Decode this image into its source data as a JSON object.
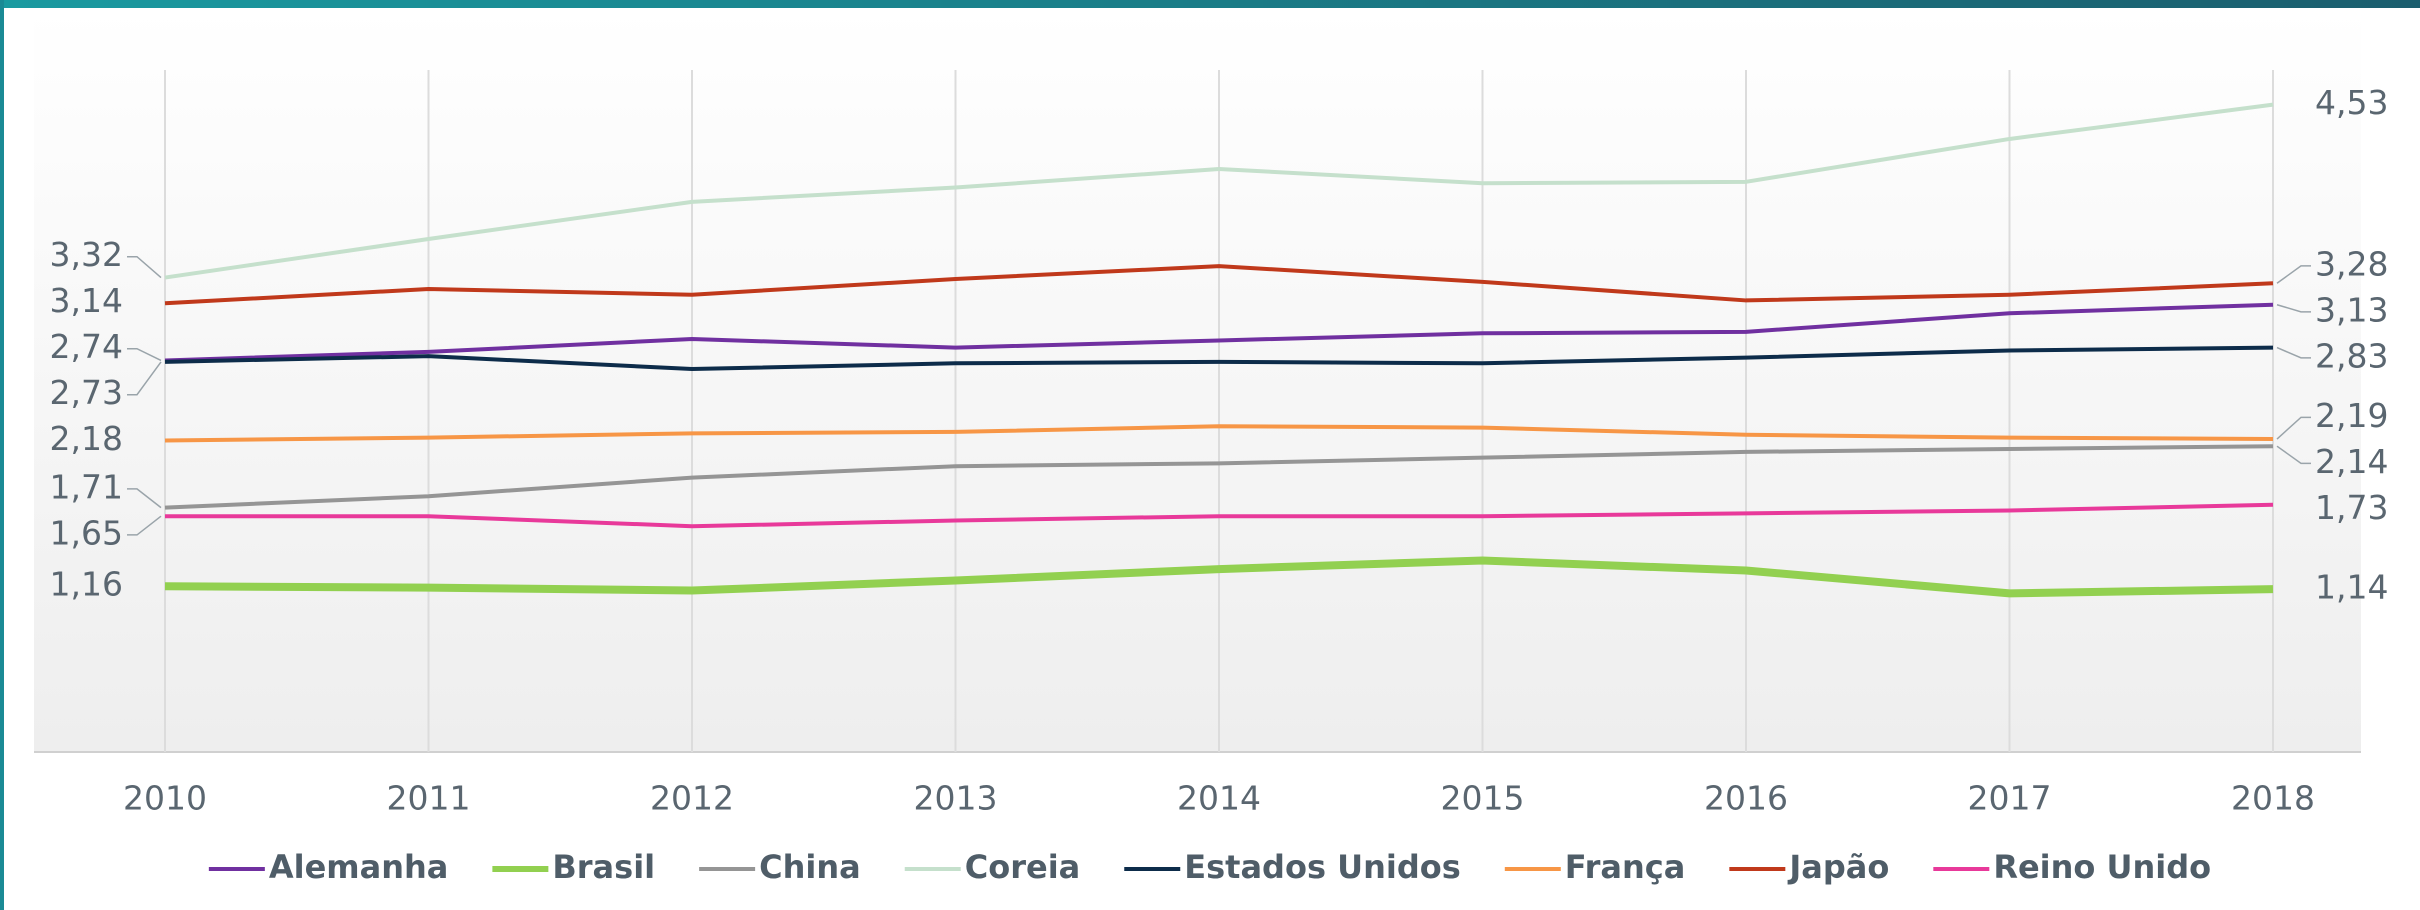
{
  "chart_data": {
    "type": "line",
    "categories": [
      "2010",
      "2011",
      "2012",
      "2013",
      "2014",
      "2015",
      "2016",
      "2017",
      "2018"
    ],
    "ylim": [
      0,
      5
    ],
    "grid": true,
    "series": [
      {
        "name": "Alemanha",
        "color": "#7030a0",
        "values": [
          2.74,
          2.8,
          2.89,
          2.83,
          2.88,
          2.93,
          2.94,
          3.07,
          3.13
        ],
        "value_labels": [
          "2,74",
          null,
          null,
          null,
          null,
          null,
          null,
          null,
          "3,13"
        ]
      },
      {
        "name": "Brasil",
        "color": "#92d050",
        "values": [
          1.16,
          1.15,
          1.13,
          1.2,
          1.28,
          1.34,
          1.27,
          1.11,
          1.14
        ],
        "value_labels": [
          "1,16",
          null,
          null,
          null,
          null,
          null,
          null,
          null,
          "1,14"
        ]
      },
      {
        "name": "China",
        "color": "#959595",
        "values": [
          1.71,
          1.79,
          1.92,
          2.0,
          2.02,
          2.06,
          2.1,
          2.12,
          2.14
        ],
        "value_labels": [
          "1,71",
          null,
          null,
          null,
          null,
          null,
          null,
          null,
          "2,14"
        ]
      },
      {
        "name": "Coreia",
        "color": "#c5e0cc",
        "values": [
          3.32,
          3.59,
          3.85,
          3.95,
          4.08,
          3.98,
          3.99,
          4.29,
          4.53
        ],
        "value_labels": [
          "3,32",
          null,
          null,
          null,
          null,
          null,
          null,
          null,
          "4,53"
        ]
      },
      {
        "name": "Estados Unidos",
        "color": "#0d2c4a",
        "values": [
          2.73,
          2.77,
          2.68,
          2.72,
          2.73,
          2.72,
          2.76,
          2.81,
          2.83
        ],
        "value_labels": [
          "2,73",
          null,
          null,
          null,
          null,
          null,
          null,
          null,
          "2,83"
        ]
      },
      {
        "name": "França",
        "color": "#f79646",
        "values": [
          2.18,
          2.2,
          2.23,
          2.24,
          2.28,
          2.27,
          2.22,
          2.2,
          2.19
        ],
        "value_labels": [
          "2,18",
          null,
          null,
          null,
          null,
          null,
          null,
          null,
          "2,19"
        ]
      },
      {
        "name": "Japão",
        "color": "#c0391b",
        "values": [
          3.14,
          3.24,
          3.2,
          3.31,
          3.4,
          3.29,
          3.16,
          3.2,
          3.28
        ],
        "value_labels": [
          "3,14",
          null,
          null,
          null,
          null,
          null,
          null,
          null,
          "3,28"
        ]
      },
      {
        "name": "Reino Unido",
        "color": "#e8399a",
        "values": [
          1.65,
          1.65,
          1.58,
          1.62,
          1.65,
          1.65,
          1.67,
          1.69,
          1.73
        ],
        "value_labels": [
          "1,65",
          null,
          null,
          null,
          null,
          null,
          null,
          null,
          "1,73"
        ]
      }
    ]
  }
}
